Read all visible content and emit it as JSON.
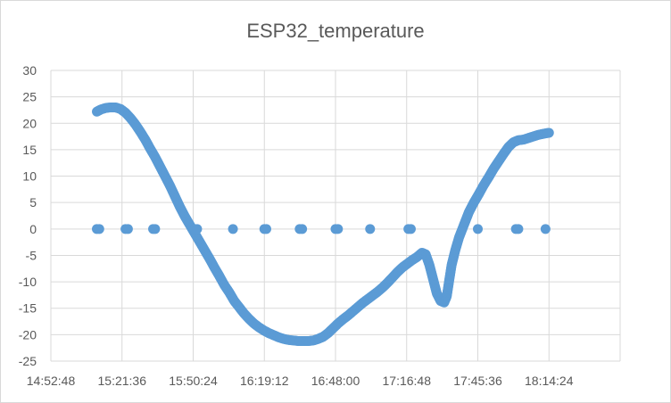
{
  "chart_data": {
    "type": "scatter",
    "title": "ESP32_temperature",
    "xlabel": "",
    "ylabel": "",
    "x_ticks": [
      "14:52:48",
      "15:21:36",
      "15:50:24",
      "16:19:12",
      "16:48:00",
      "17:16:48",
      "17:45:36",
      "18:14:24"
    ],
    "xlim": [
      "14:52:48",
      "18:43:12"
    ],
    "ylim": [
      -25,
      30
    ],
    "y_ticks": [
      -25,
      -20,
      -15,
      -10,
      -5,
      0,
      5,
      10,
      15,
      20,
      25,
      30
    ],
    "grid": true,
    "legend": "none",
    "colors": {
      "series": "#5b9bd5",
      "grid": "#d9d9d9",
      "text": "#595959"
    },
    "series": [
      {
        "name": "",
        "marker": "circle",
        "points": [
          [
            "15:11:24",
            22.2
          ],
          [
            "15:13:00",
            22.6
          ],
          [
            "15:15:00",
            22.9
          ],
          [
            "15:17:00",
            23.0
          ],
          [
            "15:19:00",
            23.0
          ],
          [
            "15:21:00",
            22.7
          ],
          [
            "15:23:00",
            22.0
          ],
          [
            "15:25:00",
            21.0
          ],
          [
            "15:27:00",
            19.8
          ],
          [
            "15:29:00",
            18.4
          ],
          [
            "15:31:00",
            16.9
          ],
          [
            "15:33:00",
            15.2
          ],
          [
            "15:35:00",
            13.6
          ],
          [
            "15:37:00",
            11.8
          ],
          [
            "15:39:00",
            10.0
          ],
          [
            "15:41:00",
            8.2
          ],
          [
            "15:43:00",
            6.2
          ],
          [
            "15:45:00",
            4.2
          ],
          [
            "15:47:00",
            2.4
          ],
          [
            "15:49:00",
            0.8
          ],
          [
            "15:51:00",
            -0.8
          ],
          [
            "15:53:00",
            -2.4
          ],
          [
            "15:55:00",
            -4.0
          ],
          [
            "15:57:00",
            -5.6
          ],
          [
            "15:59:00",
            -7.3
          ],
          [
            "16:01:00",
            -8.9
          ],
          [
            "16:03:00",
            -10.6
          ],
          [
            "16:05:00",
            -12.0
          ],
          [
            "16:07:00",
            -13.6
          ],
          [
            "16:09:00",
            -14.8
          ],
          [
            "16:11:00",
            -16.0
          ],
          [
            "16:13:00",
            -17.0
          ],
          [
            "16:15:00",
            -17.9
          ],
          [
            "16:17:00",
            -18.6
          ],
          [
            "16:19:00",
            -19.2
          ],
          [
            "16:21:00",
            -19.7
          ],
          [
            "16:23:00",
            -20.1
          ],
          [
            "16:25:00",
            -20.5
          ],
          [
            "16:27:00",
            -20.8
          ],
          [
            "16:29:00",
            -21.0
          ],
          [
            "16:31:00",
            -21.1
          ],
          [
            "16:33:00",
            -21.2
          ],
          [
            "16:35:00",
            -21.2
          ],
          [
            "16:37:00",
            -21.2
          ],
          [
            "16:39:00",
            -21.1
          ],
          [
            "16:41:00",
            -20.8
          ],
          [
            "16:43:00",
            -20.4
          ],
          [
            "16:45:00",
            -19.7
          ],
          [
            "16:47:00",
            -18.8
          ],
          [
            "16:49:00",
            -17.9
          ],
          [
            "16:51:00",
            -17.1
          ],
          [
            "16:53:00",
            -16.4
          ],
          [
            "16:55:00",
            -15.6
          ],
          [
            "16:57:00",
            -14.8
          ],
          [
            "16:59:00",
            -14.0
          ],
          [
            "17:01:00",
            -13.3
          ],
          [
            "17:03:00",
            -12.6
          ],
          [
            "17:05:00",
            -11.9
          ],
          [
            "17:07:00",
            -11.1
          ],
          [
            "17:09:00",
            -10.2
          ],
          [
            "17:11:00",
            -9.2
          ],
          [
            "17:13:00",
            -8.2
          ],
          [
            "17:15:00",
            -7.3
          ],
          [
            "17:17:00",
            -6.6
          ],
          [
            "17:19:00",
            -5.9
          ],
          [
            "17:21:00",
            -5.3
          ],
          [
            "17:23:00",
            -4.5
          ],
          [
            "17:24:30",
            -4.8
          ],
          [
            "17:26:00",
            -6.8
          ],
          [
            "17:27:30",
            -9.5
          ],
          [
            "17:29:00",
            -12.2
          ],
          [
            "17:30:30",
            -13.6
          ],
          [
            "17:32:00",
            -13.9
          ],
          [
            "17:33:00",
            -12.8
          ],
          [
            "17:34:00",
            -9.8
          ],
          [
            "17:35:00",
            -6.8
          ],
          [
            "17:36:30",
            -4.0
          ],
          [
            "17:38:00",
            -1.6
          ],
          [
            "17:40:00",
            0.8
          ],
          [
            "17:42:00",
            3.2
          ],
          [
            "17:44:00",
            5.0
          ],
          [
            "17:46:00",
            6.6
          ],
          [
            "17:48:00",
            8.3
          ],
          [
            "17:50:00",
            9.8
          ],
          [
            "17:52:00",
            11.4
          ],
          [
            "17:54:00",
            12.8
          ],
          [
            "17:56:00",
            14.2
          ],
          [
            "17:58:00",
            15.5
          ],
          [
            "18:00:00",
            16.4
          ],
          [
            "18:02:00",
            16.8
          ],
          [
            "18:04:00",
            16.9
          ],
          [
            "18:06:00",
            17.2
          ],
          [
            "18:08:00",
            17.5
          ],
          [
            "18:10:00",
            17.8
          ],
          [
            "18:12:00",
            18.0
          ],
          [
            "18:14:24",
            18.2
          ],
          [
            "15:11:24",
            0
          ],
          [
            "15:12:24",
            0
          ],
          [
            "15:23:00",
            0
          ],
          [
            "15:24:00",
            0
          ],
          [
            "15:34:10",
            0
          ],
          [
            "15:35:00",
            0
          ],
          [
            "15:51:00",
            0
          ],
          [
            "15:52:00",
            0
          ],
          [
            "16:06:30",
            0
          ],
          [
            "16:19:12",
            0
          ],
          [
            "16:20:00",
            0
          ],
          [
            "16:33:30",
            0
          ],
          [
            "16:34:30",
            0
          ],
          [
            "16:48:00",
            0
          ],
          [
            "16:49:00",
            0
          ],
          [
            "17:02:00",
            0
          ],
          [
            "17:17:30",
            0
          ],
          [
            "17:18:30",
            0
          ],
          [
            "17:45:36",
            0
          ],
          [
            "18:01:00",
            0
          ],
          [
            "18:02:00",
            0
          ],
          [
            "18:13:00",
            0
          ]
        ]
      }
    ]
  }
}
